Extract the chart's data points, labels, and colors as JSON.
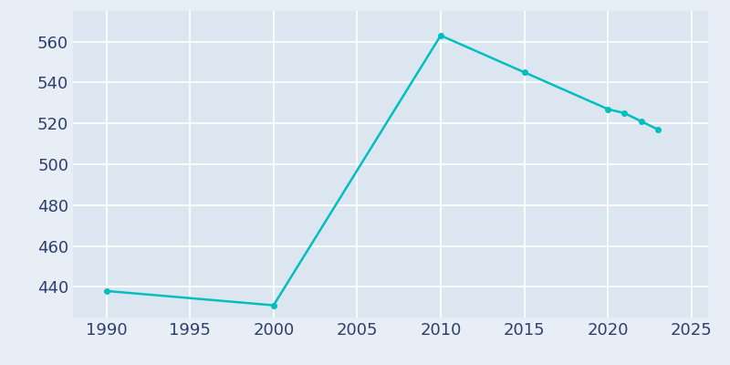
{
  "years": [
    1990,
    2000,
    2010,
    2015,
    2020,
    2021,
    2022,
    2023
  ],
  "population": [
    438,
    431,
    563,
    545,
    527,
    525,
    521,
    517
  ],
  "line_color": "#00BFBF",
  "marker_color": "#00BFBF",
  "bg_color": "#e8eef5",
  "plot_bg_color": "#dce6f0",
  "grid_color": "#ffffff",
  "xlim": [
    1988,
    2026
  ],
  "ylim": [
    425,
    575
  ],
  "xticks": [
    1990,
    1995,
    2000,
    2005,
    2010,
    2015,
    2020,
    2025
  ],
  "yticks": [
    440,
    460,
    480,
    500,
    520,
    540,
    560
  ],
  "tick_color": "#2e3f6e",
  "tick_fontsize": 13
}
